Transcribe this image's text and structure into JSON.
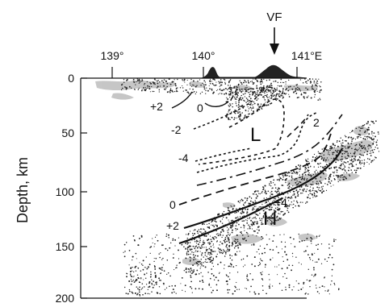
{
  "figure": {
    "volcanic_front_label": "VF",
    "y_axis_label": "Depth, km",
    "y_ticks": [
      {
        "value": 0,
        "label": "0"
      },
      {
        "value": 50,
        "label": "50"
      },
      {
        "value": 100,
        "label": "100"
      },
      {
        "value": 150,
        "label": "150"
      },
      {
        "value": 200,
        "label": "200"
      }
    ],
    "x_ticks": [
      {
        "value": 139,
        "label": "139°"
      },
      {
        "value": 140,
        "label": "140°"
      },
      {
        "value": 141,
        "label": "141°E"
      }
    ],
    "anomaly_labels": {
      "low": "L",
      "high": "H"
    },
    "contour_labels": {
      "plus2_top": "+2",
      "zero_top": "0",
      "minus2": "-2",
      "minus4": "-4",
      "two_right": "2",
      "zero_lower": "0",
      "plus2_lower": "+2",
      "plus4": "+4"
    },
    "colors": {
      "ink": "#111111",
      "topography": "#222222",
      "shading": "#bdbdbd"
    }
  }
}
